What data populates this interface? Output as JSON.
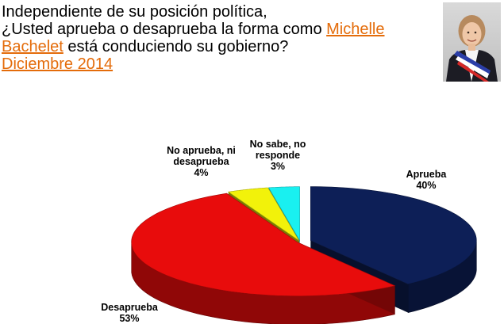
{
  "title": {
    "line1": "Independiente de su posición política,",
    "line2_prefix": "¿Usted aprueba o desaprueba la forma como ",
    "highlight_name_1": "Michelle",
    "highlight_name_2": "Bachelet",
    "line3_suffix": " está conduciendo su gobierno?",
    "date": "Diciembre 2014"
  },
  "colors": {
    "accent": "#e46c0a",
    "aprueba": "#0d1f57",
    "desaprueba": "#e80c0c",
    "ni_ni": "#f2f20a",
    "ns_nr": "#19f0f0"
  },
  "portrait": {
    "icon": "president-portrait-photo"
  },
  "chart_data": {
    "type": "pie",
    "style": "3d-exploded",
    "categories": [
      "Aprueba",
      "Desaprueba",
      "No aprueba, ni desaprueba",
      "No sabe, no responde"
    ],
    "values": [
      40,
      53,
      4,
      3
    ],
    "labels": [
      {
        "lines": [
          "Aprueba",
          "40%"
        ]
      },
      {
        "lines": [
          "Desaprueba",
          "53%"
        ]
      },
      {
        "lines": [
          "No aprueba, ni",
          "desaprueba",
          "4%"
        ]
      },
      {
        "lines": [
          "No sabe, no",
          "responde",
          "3%"
        ]
      }
    ]
  }
}
